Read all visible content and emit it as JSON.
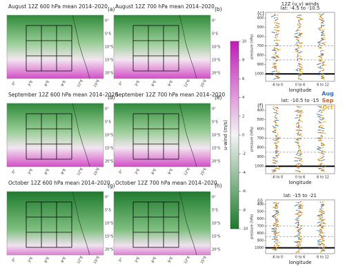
{
  "maps": [
    {
      "title": "August 12Z 600 hPa mean 2014–2020",
      "label": "(a)"
    },
    {
      "title": "August 12Z 700 hPa mean 2014–2020",
      "label": "(b)"
    },
    {
      "title": "September 12Z 600 hPa mean 2014–2020",
      "label": "(d)"
    },
    {
      "title": "September 12Z 700 hPa mean 2014–2020",
      "label": "(e)"
    },
    {
      "title": "October 12Z 600 hPa mean 2014–2020",
      "label": "(g)"
    },
    {
      "title": "October 12Z 700 hPa mean 2014–2020",
      "label": "(h)"
    }
  ],
  "lat_labels": [
    "0°",
    "5°S",
    "10°S",
    "15°S",
    "20°S"
  ],
  "lon_labels": [
    "0°",
    "3°E",
    "6°E",
    "9°E",
    "12°E",
    "15°E"
  ],
  "colorbar": {
    "label": "u-wind (m/s)",
    "lim": [
      -10,
      10
    ],
    "ticks": [
      -10,
      -8,
      -6,
      -4,
      -2,
      0,
      2,
      4,
      6,
      8,
      10
    ]
  },
  "wind": {
    "title": "12Z (u,v) winds",
    "x_label": "longitude",
    "y_label": "pressure (hPa)",
    "x_ticks": [
      "-6 to 0",
      "0 to 6",
      "6 to 12"
    ],
    "ylim": [
      1080,
      340
    ],
    "yticks": [
      400,
      500,
      600,
      700,
      800,
      900,
      1000
    ],
    "legend": [
      {
        "name": "Aug",
        "color": "#2a6fb5"
      },
      {
        "name": "Sep",
        "color": "#c0601a"
      },
      {
        "name": "Oct",
        "color": "#e0b020"
      }
    ],
    "panels": [
      {
        "label": "(c)",
        "subtitle": "lat: -4.5 to -10.5"
      },
      {
        "label": "(f)",
        "subtitle": "lat: -10.5 to -15"
      },
      {
        "label": "(i)",
        "subtitle": "lat: -15 to -21"
      }
    ]
  }
}
